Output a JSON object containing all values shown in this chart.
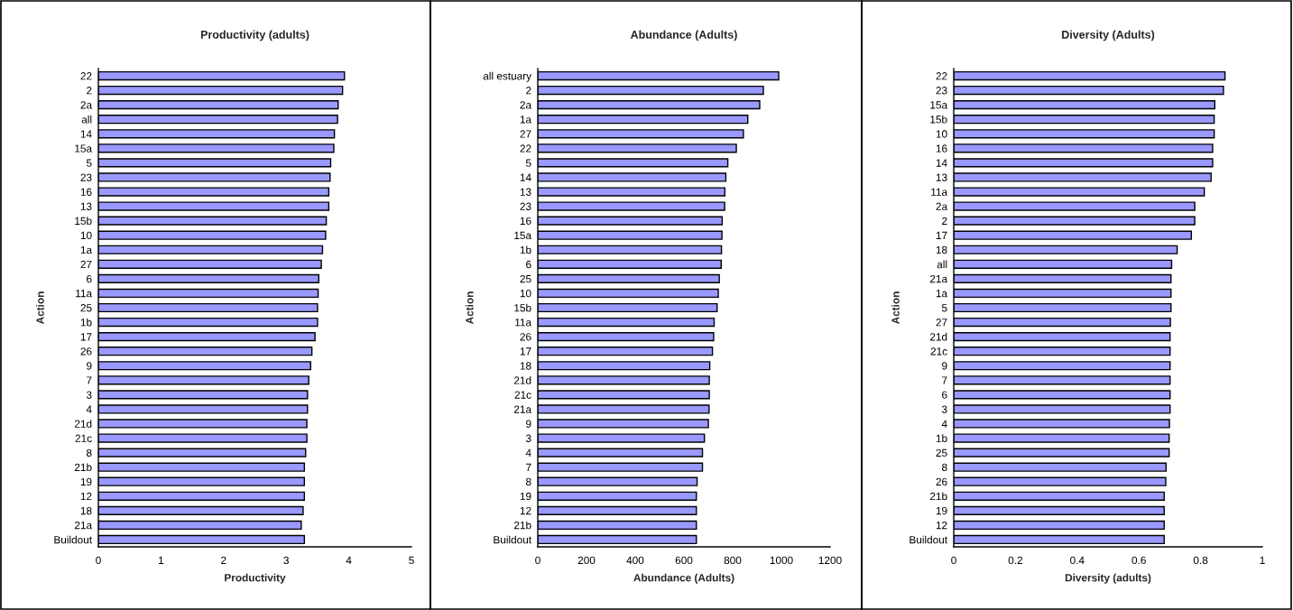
{
  "chart_data": [
    {
      "type": "bar",
      "orientation": "horizontal",
      "title": "Productivity (adults)",
      "xlabel": "Productivity",
      "ylabel": "Action",
      "color": "#9999ff",
      "grid": false,
      "legend": false,
      "categories": [
        "22",
        "2",
        "2a",
        "all",
        "14",
        "15a",
        "5",
        "23",
        "16",
        "13",
        "15b",
        "10",
        "1a",
        "27",
        "6",
        "11a",
        "25",
        "1b",
        "17",
        "26",
        "9",
        "7",
        "3",
        "4",
        "21d",
        "21c",
        "8",
        "21b",
        "19",
        "12",
        "18",
        "21a",
        "Buildout"
      ],
      "values": [
        3.93,
        3.9,
        3.83,
        3.82,
        3.77,
        3.76,
        3.71,
        3.7,
        3.68,
        3.68,
        3.64,
        3.63,
        3.58,
        3.56,
        3.52,
        3.51,
        3.5,
        3.5,
        3.46,
        3.41,
        3.39,
        3.36,
        3.34,
        3.34,
        3.33,
        3.33,
        3.31,
        3.29,
        3.29,
        3.29,
        3.27,
        3.24,
        3.29
      ],
      "xlim": [
        0,
        5
      ],
      "xticks": [
        0,
        1,
        2,
        3,
        4,
        5
      ]
    },
    {
      "type": "bar",
      "orientation": "horizontal",
      "title": "Abundance (Adults)",
      "xlabel": "Abundance (Adults)",
      "ylabel": "Action",
      "color": "#9999ff",
      "grid": false,
      "legend": false,
      "categories": [
        "all estuary",
        "2",
        "2a",
        "1a",
        "27",
        "22",
        "5",
        "14",
        "13",
        "23",
        "16",
        "15a",
        "1b",
        "6",
        "25",
        "10",
        "15b",
        "11a",
        "26",
        "17",
        "18",
        "21d",
        "21c",
        "21a",
        "9",
        "3",
        "4",
        "7",
        "8",
        "19",
        "12",
        "21b",
        "Buildout"
      ],
      "values": [
        989,
        926,
        911,
        862,
        844,
        815,
        780,
        772,
        768,
        767,
        757,
        756,
        754,
        753,
        745,
        741,
        736,
        724,
        722,
        717,
        706,
        704,
        704,
        703,
        700,
        684,
        676,
        676,
        654,
        651,
        651,
        651,
        651
      ],
      "xlim": [
        0,
        1200
      ],
      "xticks": [
        0,
        200,
        400,
        600,
        800,
        1000,
        1200
      ]
    },
    {
      "type": "bar",
      "orientation": "horizontal",
      "title": "Diversity (Adults)",
      "xlabel": "Diversity (adults)",
      "ylabel": "Action",
      "color": "#9999ff",
      "grid": false,
      "legend": false,
      "categories": [
        "22",
        "23",
        "15a",
        "15b",
        "10",
        "16",
        "14",
        "13",
        "11a",
        "2a",
        "2",
        "17",
        "18",
        "all",
        "21a",
        "1a",
        "5",
        "27",
        "21d",
        "21c",
        "9",
        "7",
        "6",
        "3",
        "4",
        "1b",
        "25",
        "8",
        "26",
        "21b",
        "19",
        "12",
        "Buildout"
      ],
      "values": [
        0.879,
        0.874,
        0.846,
        0.844,
        0.844,
        0.839,
        0.839,
        0.834,
        0.812,
        0.781,
        0.781,
        0.77,
        0.724,
        0.706,
        0.704,
        0.704,
        0.704,
        0.702,
        0.701,
        0.701,
        0.701,
        0.701,
        0.701,
        0.701,
        0.699,
        0.698,
        0.698,
        0.688,
        0.687,
        0.682,
        0.682,
        0.682,
        0.682
      ],
      "xlim": [
        0,
        1
      ],
      "xticks": [
        0,
        0.2,
        0.4,
        0.6,
        0.8,
        1
      ]
    }
  ]
}
